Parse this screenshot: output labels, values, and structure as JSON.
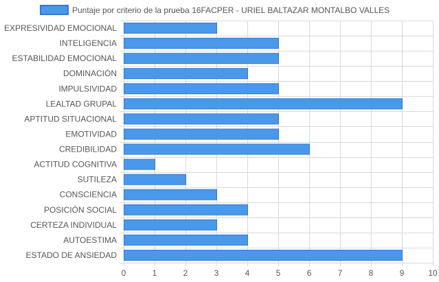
{
  "chart_data": {
    "type": "bar",
    "orientation": "horizontal",
    "categories": [
      "EXPRESIVIDAD EMOCIONAL",
      "INTELIGENCIA",
      "ESTABILIDAD EMOCIONAL",
      "DOMINACIÓN",
      "IMPULSIVIDAD",
      "LEALTAD GRUPAL",
      "APTITUD SITUACIONAL",
      "EMOTIVIDAD",
      "CREDIBILIDAD",
      "ACTITUD COGNITIVA",
      "SUTILEZA",
      "CONSCIENCIA",
      "POSICIÓN SOCIAL",
      "CERTEZA INDIVIDUAL",
      "AUTOESTIMA",
      "ESTADO DE ANSIEDAD"
    ],
    "series": [
      {
        "name": "Puntaje por criterio de la prueba 16FACPER - URIEL BALTAZAR MONTALBO VALLES",
        "values": [
          3,
          5,
          5,
          4,
          5,
          9,
          5,
          5,
          6,
          1,
          2,
          3,
          4,
          3,
          4,
          9
        ]
      }
    ],
    "xlim": [
      0,
      10
    ],
    "xticks": [
      "0",
      "1",
      "2",
      "3",
      "4",
      "5",
      "6",
      "7",
      "8",
      "9",
      "10"
    ],
    "grid": true,
    "legend_position": "top",
    "colors": {
      "bar_fill": "#4a98ea",
      "bar_stroke": "#3478d8",
      "grid": "#d9d9d9"
    }
  }
}
